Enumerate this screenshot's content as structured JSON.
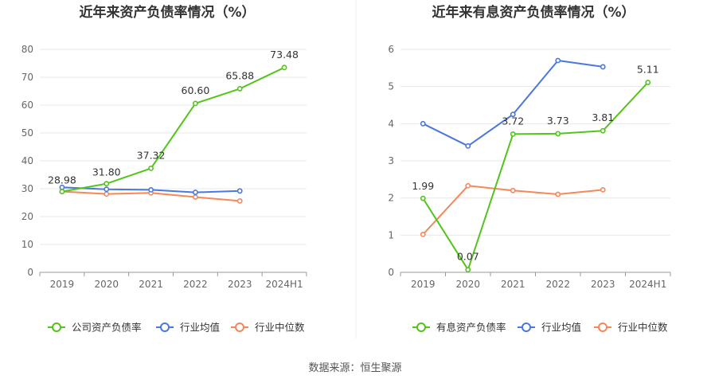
{
  "source_text": "数据来源：恒生聚源",
  "colors": {
    "green": "#52c41a",
    "blue": "#4a78e0",
    "orange": "#f5875a",
    "grid": "#e8e8e8",
    "axis": "#999999"
  },
  "chart_data": [
    {
      "type": "line",
      "title": "近年来资产负债率情况（%）",
      "categories": [
        "2019",
        "2020",
        "2021",
        "2022",
        "2023",
        "2024H1"
      ],
      "ylim": [
        0,
        80
      ],
      "yticks": [
        0,
        10,
        20,
        30,
        40,
        50,
        60,
        70,
        80
      ],
      "grid": true,
      "legend_position": "bottom",
      "series": [
        {
          "name": "公司资产负债率",
          "color": "#52c41a",
          "values": [
            28.98,
            31.8,
            37.32,
            60.6,
            65.88,
            73.48
          ],
          "labels": [
            "28.98",
            "31.80",
            "37.32",
            "60.60",
            "65.88",
            "73.48"
          ]
        },
        {
          "name": "行业均值",
          "color": "#4a78e0",
          "values": [
            30.5,
            29.8,
            29.6,
            28.7,
            29.2,
            null
          ]
        },
        {
          "name": "行业中位数",
          "color": "#f5875a",
          "values": [
            29.0,
            28.1,
            28.5,
            27.0,
            25.6,
            null
          ]
        }
      ]
    },
    {
      "type": "line",
      "title": "近年来有息资产负债率情况（%）",
      "categories": [
        "2019",
        "2020",
        "2021",
        "2022",
        "2023",
        "2024H1"
      ],
      "ylim": [
        0,
        6
      ],
      "yticks": [
        0,
        1,
        2,
        3,
        4,
        5,
        6
      ],
      "grid": true,
      "legend_position": "bottom",
      "series": [
        {
          "name": "有息资产负债率",
          "color": "#52c41a",
          "values": [
            1.99,
            0.07,
            3.72,
            3.73,
            3.81,
            5.11
          ],
          "labels": [
            "1.99",
            "0.07",
            "3.72",
            "3.73",
            "3.81",
            "5.11"
          ]
        },
        {
          "name": "行业均值",
          "color": "#4a78e0",
          "values": [
            4.0,
            3.4,
            4.25,
            5.7,
            5.53,
            null
          ]
        },
        {
          "name": "行业中位数",
          "color": "#f5875a",
          "values": [
            1.02,
            2.33,
            2.2,
            2.1,
            2.22,
            null
          ]
        }
      ]
    }
  ]
}
